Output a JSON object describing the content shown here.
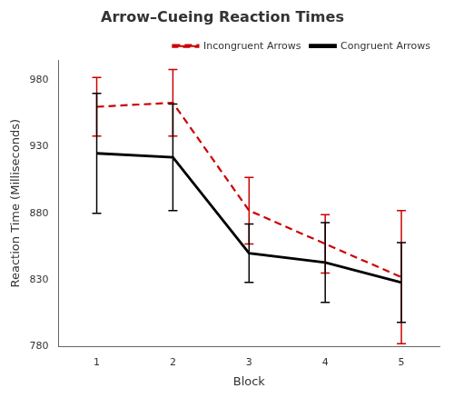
{
  "chart_data": {
    "type": "line",
    "title": "Arrow–Cueing Reaction Times",
    "xlabel": "Block",
    "ylabel": "Reaction Time (Milliseconds)",
    "x": [
      1,
      2,
      3,
      4,
      5
    ],
    "series": [
      {
        "name": "Incongruent Arrows",
        "color": "#CC0000",
        "line_style": "dashed",
        "values": [
          960,
          963,
          882,
          857,
          832
        ],
        "errors": [
          22,
          25,
          25,
          22,
          50
        ]
      },
      {
        "name": "Congruent Arrows",
        "color": "#000000",
        "line_style": "solid",
        "values": [
          925,
          922,
          850,
          843,
          828
        ],
        "errors": [
          45,
          40,
          22,
          30,
          30
        ]
      }
    ],
    "xlim": [
      0.5,
      5.5
    ],
    "xticks": [
      1,
      2,
      3,
      4,
      5
    ],
    "ylim": [
      780,
      995
    ],
    "yticks": [
      780,
      830,
      880,
      930,
      980
    ],
    "grid": false,
    "legend": "upper right"
  }
}
